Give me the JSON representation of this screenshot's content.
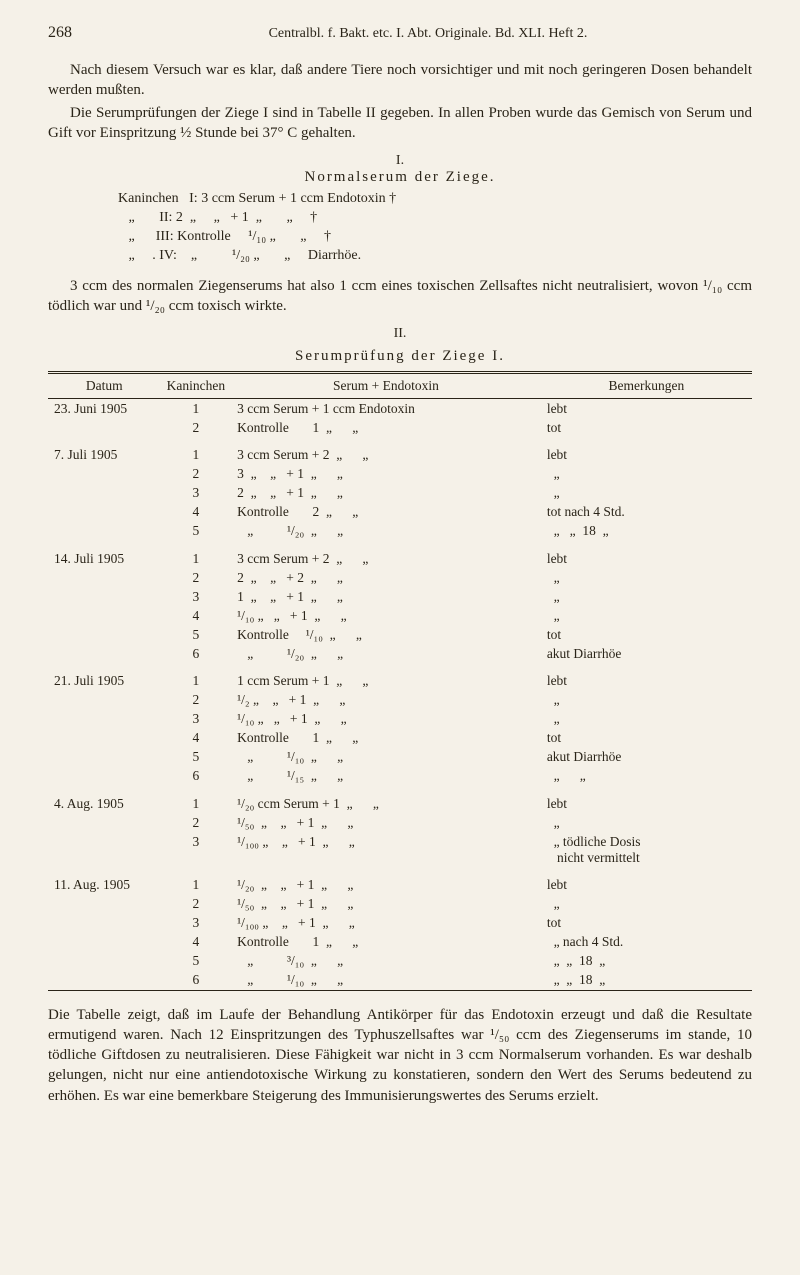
{
  "page_number": "268",
  "running_title": "Centralbl. f. Bakt. etc. I. Abt. Originale. Bd. XLI. Heft 2.",
  "para1": "Nach diesem Versuch war es klar, daß andere Tiere noch vor­sichtiger und mit noch geringeren Dosen behandelt werden mußten.",
  "para2": "Die Serumprüfungen der Ziege I sind in Tabelle II gegeben. In allen Proben wurde das Gemisch von Serum und Gift vor Einspritzung ½ Stunde bei 37° C gehalten.",
  "section1": {
    "num": "I.",
    "title": "Normalserum der Ziege."
  },
  "block1_lines": [
    "Kaninchen   I: 3 ccm Serum + 1 ccm Endotoxin †",
    "   „       II: 2  „     „   + 1  „       „     †",
    "   „      III: Kontrolle     ¹/₁₀ „       „     †",
    "   „     . IV:    „          ¹/₂₀ „       „     Diarrhöe."
  ],
  "para3": "3 ccm des normalen Ziegenserums hat also 1 ccm eines toxischen Zellsaftes nicht neutralisiert, wovon ¹/₁₀ ccm tödlich war und ¹/₂₀ ccm toxisch wirkte.",
  "section2": {
    "num": "II.",
    "title": "Serumprüfung der Ziege I."
  },
  "table": {
    "headers": [
      "Datum",
      "Kaninchen",
      "Serum + Endotoxin",
      "Bemerkungen"
    ],
    "groups": [
      {
        "date": "23. Juni 1905",
        "rows": [
          {
            "k": "1",
            "s": "3 ccm Serum + 1 ccm Endotoxin",
            "b": "lebt"
          },
          {
            "k": "2",
            "s": "Kontrolle       1  „      „",
            "b": "tot"
          }
        ]
      },
      {
        "date": "7. Juli 1905",
        "rows": [
          {
            "k": "1",
            "s": "3 ccm Serum + 2  „      „",
            "b": "lebt"
          },
          {
            "k": "2",
            "s": "3  „    „   + 1  „      „",
            "b": "  „"
          },
          {
            "k": "3",
            "s": "2  „    „   + 1  „      „",
            "b": "  „"
          },
          {
            "k": "4",
            "s": "Kontrolle       2  „      „",
            "b": "tot nach 4 Std."
          },
          {
            "k": "5",
            "s": "   „          ¹/₂₀  „      „",
            "b": "  „   „  18  „"
          }
        ]
      },
      {
        "date": "14. Juli 1905",
        "rows": [
          {
            "k": "1",
            "s": "3 ccm Serum + 2  „      „",
            "b": "lebt"
          },
          {
            "k": "2",
            "s": "2  „    „   + 2  „      „",
            "b": "  „"
          },
          {
            "k": "3",
            "s": "1  „    „   + 1  „      „",
            "b": "  „"
          },
          {
            "k": "4",
            "s": "¹/₁₀ „   „   + 1  „      „",
            "b": "  „"
          },
          {
            "k": "5",
            "s": "Kontrolle     ¹/₁₀  „      „",
            "b": "tot"
          },
          {
            "k": "6",
            "s": "   „          ¹/₂₀  „      „",
            "b": "akut Diarrhöe"
          }
        ]
      },
      {
        "date": "21. Juli 1905",
        "rows": [
          {
            "k": "1",
            "s": "1 ccm Serum + 1  „      „",
            "b": "lebt"
          },
          {
            "k": "2",
            "s": "¹/₂ „    „   + 1  „      „",
            "b": "  „"
          },
          {
            "k": "3",
            "s": "¹/₁₀ „   „   + 1  „      „",
            "b": "  „"
          },
          {
            "k": "4",
            "s": "Kontrolle       1  „      „",
            "b": "tot"
          },
          {
            "k": "5",
            "s": "   „          ¹/₁₀  „      „",
            "b": "akut Diarrhöe"
          },
          {
            "k": "6",
            "s": "   „          ¹/₁₅  „      „",
            "b": "  „      „"
          }
        ]
      },
      {
        "date": "4. Aug. 1905",
        "rows": [
          {
            "k": "1",
            "s": "¹/₂₀ ccm Serum + 1  „      „",
            "b": "lebt"
          },
          {
            "k": "2",
            "s": "¹/₅₀  „    „   + 1  „      „",
            "b": "  „"
          },
          {
            "k": "3",
            "s": "¹/₁₀₀ „    „   + 1  „      „",
            "b": "  „ tödliche Dosis\n   nicht vermittelt"
          }
        ]
      },
      {
        "date": "11. Aug. 1905",
        "rows": [
          {
            "k": "1",
            "s": "¹/₂₀  „    „   + 1  „      „",
            "b": "lebt"
          },
          {
            "k": "2",
            "s": "¹/₅₀  „    „   + 1  „      „",
            "b": "  „"
          },
          {
            "k": "3",
            "s": "¹/₁₀₀ „    „   + 1  „      „",
            "b": "tot"
          },
          {
            "k": "4",
            "s": "Kontrolle       1  „      „",
            "b": "  „ nach 4 Std."
          },
          {
            "k": "5",
            "s": "   „          ³/₁₀  „      „",
            "b": "  „  „  18  „"
          },
          {
            "k": "6",
            "s": "   „          ¹/₁₀  „      „",
            "b": "  „  „  18  „"
          }
        ]
      }
    ]
  },
  "para4": "Die Tabelle zeigt, daß im Laufe der Behandlung Antikörper für das Endotoxin erzeugt und daß die Resultate ermutigend waren. Nach 12 Einspritzungen des Typhuszellsaftes war ¹/₅₀ ccm des Ziegenserums im stande, 10 tödliche Giftdosen zu neutralisieren. Diese Fähigkeit war nicht in 3 ccm Normalserum vorhanden. Es war deshalb gelungen, nicht nur eine antiendotoxische Wirkung zu konstatieren, sondern den Wert des Serums bedeutend zu erhöhen. Es war eine bemerkbare Steigerung des Immunisierungswertes des Serums erzielt."
}
